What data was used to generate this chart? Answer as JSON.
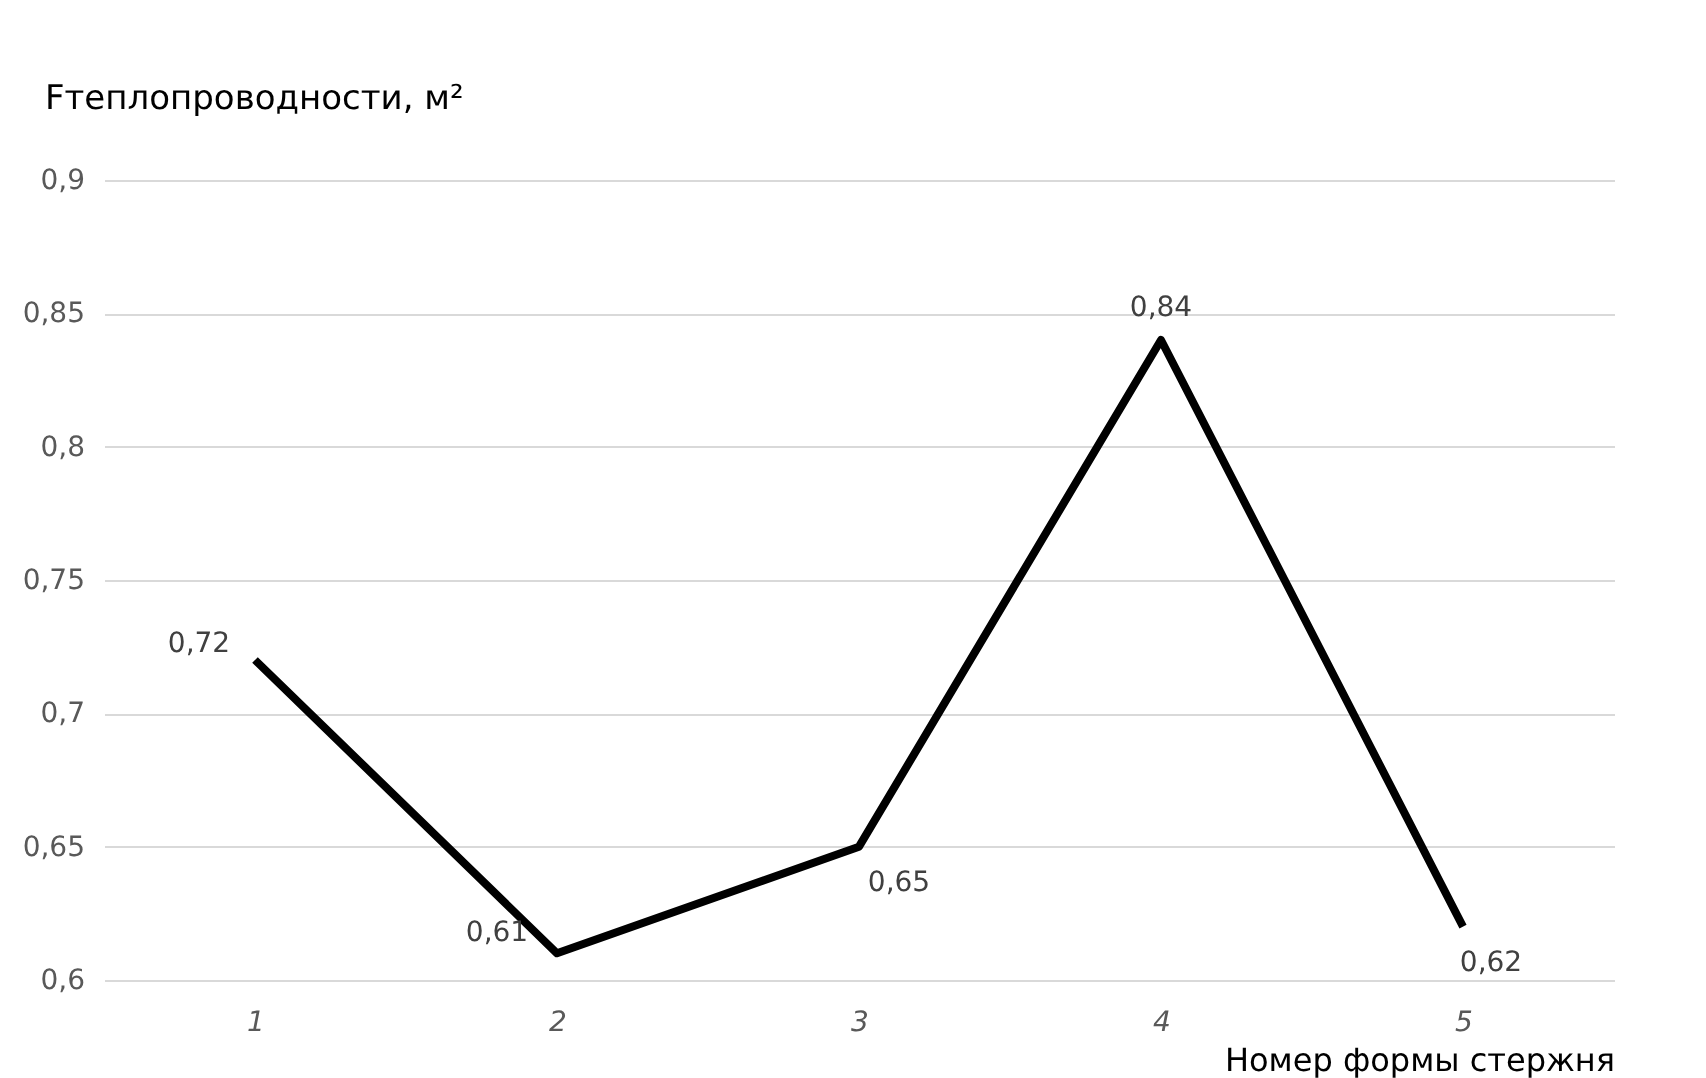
{
  "chart_data": {
    "type": "line",
    "ylabel": "Fтеплопроводности, м²",
    "xlabel": "Номер формы стержня",
    "categories": [
      "1",
      "2",
      "3",
      "4",
      "5"
    ],
    "series": [
      {
        "color": "#000000",
        "values": [
          0.72,
          0.61,
          0.65,
          0.84,
          0.62
        ]
      }
    ],
    "value_labels": [
      "0,72",
      "0,61",
      "0,65",
      "0,84",
      "0,62"
    ],
    "ylim": [
      0.6,
      0.9
    ],
    "yticks": [
      {
        "value": 0.6,
        "label": "0,6"
      },
      {
        "value": 0.65,
        "label": "0,65"
      },
      {
        "value": 0.7,
        "label": "0,7"
      },
      {
        "value": 0.75,
        "label": "0,75"
      },
      {
        "value": 0.8,
        "label": "0,8"
      },
      {
        "value": 0.85,
        "label": "0,85"
      },
      {
        "value": 0.9,
        "label": "0,9"
      }
    ],
    "grid": "y",
    "marker": "none",
    "line_style": "solid"
  }
}
